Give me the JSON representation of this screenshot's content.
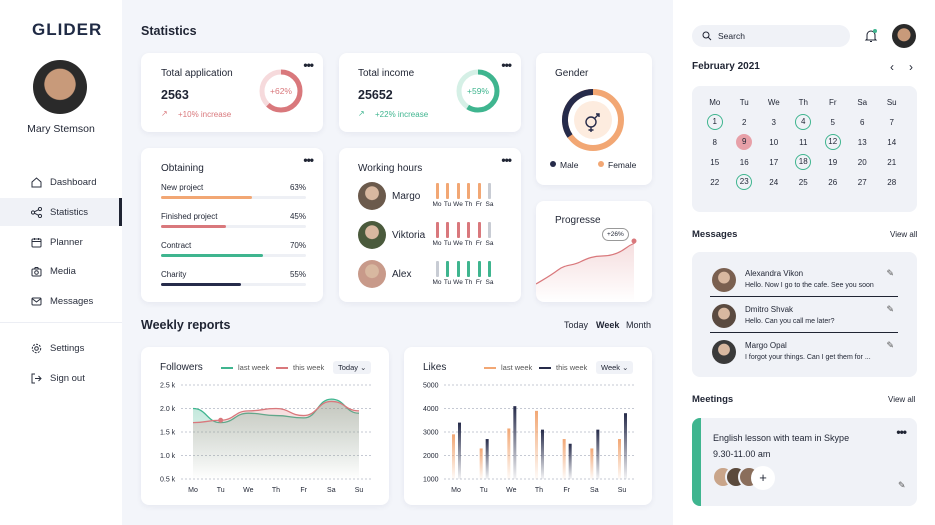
{
  "app": {
    "logo": "GLIDER"
  },
  "user": {
    "name": "Mary Stemson"
  },
  "nav": {
    "items": [
      {
        "label": "Dashboard",
        "icon": "home-icon"
      },
      {
        "label": "Statistics",
        "icon": "share-icon"
      },
      {
        "label": "Planner",
        "icon": "calendar-icon"
      },
      {
        "label": "Media",
        "icon": "camera-icon"
      },
      {
        "label": "Messages",
        "icon": "mail-icon"
      }
    ],
    "settings": "Settings",
    "signout": "Sign out"
  },
  "statistics": {
    "title": "Statistics",
    "total_application": {
      "label": "Total application",
      "value": "2563",
      "change": "+10% increase",
      "ring": "+62%",
      "ring_fraction": 0.62
    },
    "total_income": {
      "label": "Total income",
      "value": "25652",
      "change": "+22% increase",
      "ring": "+59%",
      "ring_fraction": 0.59
    },
    "gender": {
      "label": "Gender",
      "male": "Male",
      "female": "Female"
    },
    "obtaining": {
      "label": "Obtaining",
      "rows": [
        {
          "label": "New project",
          "pct": "63%",
          "value": 0.63,
          "color": "#f2a774"
        },
        {
          "label": "Finished project",
          "pct": "45%",
          "value": 0.45,
          "color": "#d9787c"
        },
        {
          "label": "Contract",
          "pct": "70%",
          "value": 0.7,
          "color": "#3fb58f"
        },
        {
          "label": "Charity",
          "pct": "55%",
          "value": 0.55,
          "color": "#262b4a"
        }
      ]
    },
    "working_hours": {
      "label": "Working hours",
      "days": [
        "Mo",
        "Tu",
        "We",
        "Th",
        "Fr",
        "Sa"
      ],
      "people": [
        {
          "name": "Margo",
          "color": "#f2a774"
        },
        {
          "name": "Viktoria",
          "color": "#d9787c"
        },
        {
          "name": "Alex",
          "color": "#3fb58f"
        }
      ]
    },
    "progress": {
      "label": "Progresse",
      "badge": "+26%"
    }
  },
  "weekly": {
    "title": "Weekly reports",
    "periods": [
      "Today",
      "Week",
      "Month"
    ],
    "active_period": "Week"
  },
  "chart_data": [
    {
      "type": "area",
      "title": "Followers",
      "categories": [
        "Mo",
        "Tu",
        "We",
        "Th",
        "Fr",
        "Sa",
        "Su"
      ],
      "yticks": [
        "2.5 k",
        "2.0 k",
        "1.5 k",
        "1.0 k",
        "0.5 k"
      ],
      "ylim": [
        0.5,
        2.5
      ],
      "series": [
        {
          "name": "last week",
          "color": "#3fb58f",
          "values": [
            2.0,
            1.7,
            1.9,
            1.85,
            1.8,
            2.2,
            1.9
          ]
        },
        {
          "name": "this week",
          "color": "#d9787c",
          "values": [
            1.7,
            1.75,
            1.95,
            2.0,
            1.85,
            2.15,
            1.95
          ]
        }
      ],
      "dropdown": "Today"
    },
    {
      "type": "bar",
      "title": "Likes",
      "categories": [
        "Mo",
        "Tu",
        "We",
        "Th",
        "Fr",
        "Sa",
        "Su"
      ],
      "yticks": [
        "5000",
        "4000",
        "3000",
        "2000",
        "1000"
      ],
      "ylim": [
        1000,
        5000
      ],
      "series": [
        {
          "name": "last week",
          "color": "#f2a774",
          "values": [
            2900,
            2300,
            3150,
            3900,
            2700,
            2300,
            2700
          ]
        },
        {
          "name": "this week",
          "color": "#262b4a",
          "values": [
            3400,
            2700,
            4100,
            3100,
            2500,
            3100,
            3800
          ]
        }
      ],
      "dropdown": "Week"
    }
  ],
  "search": {
    "placeholder": "Search"
  },
  "calendar": {
    "month": "February 2021",
    "weekdays": [
      "Mo",
      "Tu",
      "We",
      "Th",
      "Fr",
      "Sa",
      "Su"
    ],
    "weeks": [
      [
        "1",
        "2",
        "3",
        "4",
        "5",
        "6",
        "7"
      ],
      [
        "8",
        "9",
        "10",
        "11",
        "12",
        "13",
        "14"
      ],
      [
        "15",
        "16",
        "17",
        "18",
        "19",
        "20",
        "21"
      ],
      [
        "22",
        "23",
        "24",
        "25",
        "26",
        "27",
        "28"
      ]
    ],
    "circled": [
      "1",
      "4",
      "12",
      "18",
      "23"
    ],
    "highlighted": "9"
  },
  "messages": {
    "title": "Messages",
    "view_all": "View all",
    "items": [
      {
        "name": "Alexandra Vikon",
        "text": "Hello. Now I go to the cafe. See you soon"
      },
      {
        "name": "Dmitro Shvak",
        "text": "Hello. Can you call me later?"
      },
      {
        "name": "Margo Opal",
        "text": "I forgot your things. Can I get them for ..."
      }
    ]
  },
  "meetings": {
    "title": "Meetings",
    "view_all": "View all",
    "item": {
      "title": "English lesson with team in Skype",
      "time": "9.30-11.00 am"
    }
  }
}
